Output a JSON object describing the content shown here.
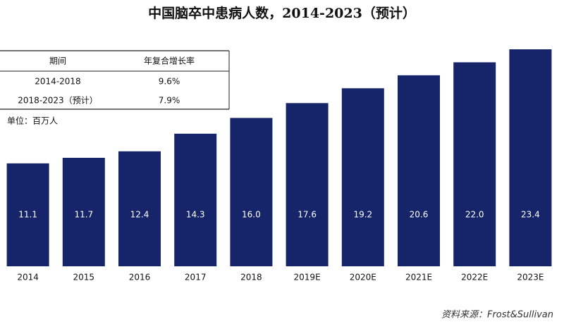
{
  "chart_data": {
    "type": "bar",
    "title": "中国脑卒中患病人数，2014-2023（预计）",
    "unit_label": "单位：百万人",
    "categories": [
      "2014",
      "2015",
      "2016",
      "2017",
      "2018",
      "2019E",
      "2020E",
      "2021E",
      "2022E",
      "2023E"
    ],
    "values": [
      11.1,
      11.7,
      12.4,
      14.3,
      16.0,
      17.6,
      19.2,
      20.6,
      22.0,
      23.4
    ],
    "value_labels": [
      "11.1",
      "11.7",
      "12.4",
      "14.3",
      "16.0",
      "17.6",
      "19.2",
      "20.6",
      "22.0",
      "23.4"
    ],
    "color": "#16256a",
    "source": "资料来源：Frost&Sullivan"
  },
  "table": {
    "header": [
      "期间",
      "年复合增长率"
    ],
    "rows": [
      [
        "2014-2018",
        "9.6%"
      ],
      [
        "2018-2023（预计）",
        "7.9%"
      ]
    ]
  }
}
